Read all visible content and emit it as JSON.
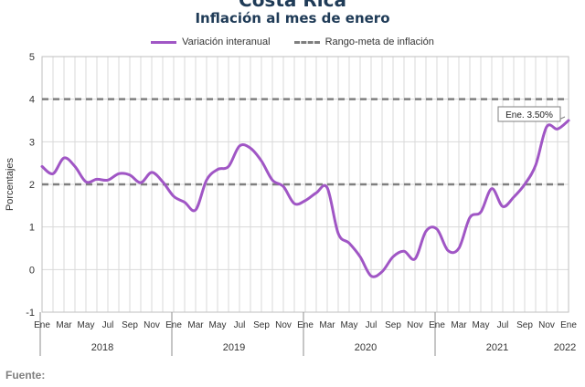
{
  "header": {
    "super_title": "Costa Rica"
  },
  "chart_data": {
    "type": "line",
    "title": "Inflación al mes de enero",
    "ylabel": "Porcentajes",
    "ylim": [
      -1,
      5
    ],
    "yticks": [
      5,
      4,
      3,
      2,
      1,
      0,
      -1
    ],
    "grid": true,
    "legend_position": "top",
    "x_month_labels": [
      "Ene",
      "Mar",
      "May",
      "Jul",
      "Sep",
      "Nov",
      "Ene",
      "Mar",
      "May",
      "Jul",
      "Sep",
      "Nov",
      "Ene",
      "Mar",
      "May",
      "Jul",
      "Sep",
      "Nov",
      "Ene",
      "Mar",
      "May",
      "Jul",
      "Sep",
      "Nov",
      "Ene"
    ],
    "x_year_labels": [
      "2018",
      "2019",
      "2020",
      "2021",
      "2022"
    ],
    "series": [
      {
        "name": "Variación interanual",
        "color": "#a056c5",
        "x_start": "2018-01",
        "values": [
          2.42,
          2.25,
          2.62,
          2.42,
          2.06,
          2.12,
          2.1,
          2.25,
          2.22,
          2.04,
          2.28,
          2.06,
          1.72,
          1.58,
          1.4,
          2.1,
          2.35,
          2.42,
          2.9,
          2.85,
          2.55,
          2.1,
          1.95,
          1.55,
          1.62,
          1.8,
          1.92,
          0.85,
          0.62,
          0.3,
          -0.15,
          -0.05,
          0.3,
          0.43,
          0.25,
          0.9,
          0.95,
          0.45,
          0.5,
          1.22,
          1.35,
          1.9,
          1.48,
          1.7,
          2.0,
          2.45,
          3.35,
          3.3,
          3.5
        ]
      },
      {
        "name": "Rango-meta de inflación",
        "color": "#7f7f7f",
        "dashed": true,
        "bands": [
          2,
          4
        ]
      }
    ],
    "annotation": {
      "text": "Ene. 3.50%",
      "value": 3.5
    }
  },
  "footer": {
    "source_label": "Fuente:"
  }
}
